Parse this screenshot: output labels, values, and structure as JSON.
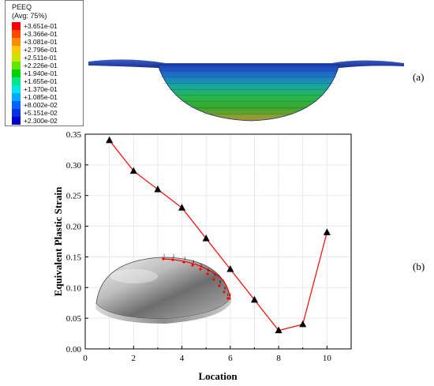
{
  "legend": {
    "title": "PEEQ",
    "subtitle": "(Avg: 75%)",
    "entries": [
      {
        "label": "+3.651e-01",
        "color": "#ff0000"
      },
      {
        "label": "+3.366e-01",
        "color": "#ff4a00"
      },
      {
        "label": "+3.081e-01",
        "color": "#ff8c00"
      },
      {
        "label": "+2.796e-01",
        "color": "#ffc800"
      },
      {
        "label": "+2.511e-01",
        "color": "#c8e600"
      },
      {
        "label": "+2.226e-01",
        "color": "#64e600"
      },
      {
        "label": "+1.940e-01",
        "color": "#00d200"
      },
      {
        "label": "+1.655e-01",
        "color": "#00e68c"
      },
      {
        "label": "+1.370e-01",
        "color": "#00e6e6"
      },
      {
        "label": "+1.085e-01",
        "color": "#00aaff"
      },
      {
        "label": "+8.002e-02",
        "color": "#0064ff"
      },
      {
        "label": "+5.151e-02",
        "color": "#0032e6"
      },
      {
        "label": "+2.300e-02",
        "color": "#0000c8"
      }
    ]
  },
  "panel_labels": {
    "a": "(a)",
    "b": "(b)"
  },
  "inset_markers": [
    "1",
    "2",
    "3",
    "4",
    "5",
    "6",
    "7",
    "8",
    "9",
    "10"
  ],
  "chart_data": {
    "type": "line",
    "xlabel": "Location",
    "ylabel": "Equivalent Plastic Strain",
    "xlim": [
      0,
      11
    ],
    "ylim": [
      0,
      0.35
    ],
    "xticks": [
      0,
      2,
      4,
      6,
      8,
      10
    ],
    "yticks": [
      0.0,
      0.05,
      0.1,
      0.15,
      0.2,
      0.25,
      0.3,
      0.35
    ],
    "grid": true,
    "series": [
      {
        "x": [
          1,
          2,
          3,
          4,
          5,
          6,
          7,
          8,
          9,
          10
        ],
        "values": [
          0.34,
          0.29,
          0.26,
          0.23,
          0.18,
          0.13,
          0.08,
          0.03,
          0.04,
          0.19
        ],
        "line_color": "#ff0000",
        "marker_color": "#000000"
      }
    ]
  }
}
